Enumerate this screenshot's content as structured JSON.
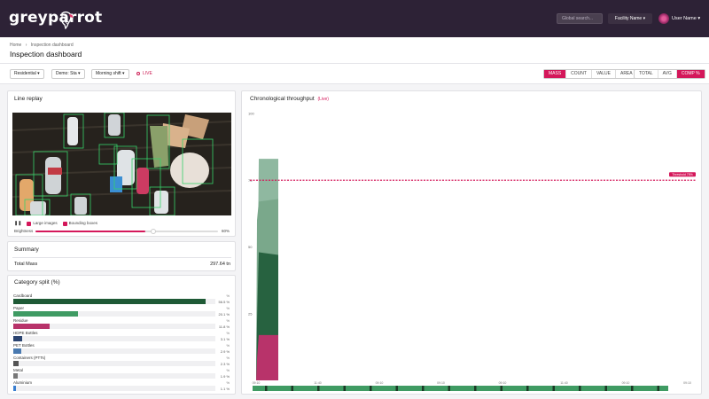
{
  "brand": {
    "logo_text": "greyparrot"
  },
  "topnav": {
    "search_placeholder": "Global search...",
    "facility": "Facility Name ▾",
    "user": "User Name ▾"
  },
  "header": {
    "breadcrumb": [
      "Home",
      "›",
      "Inspection dashboard"
    ],
    "title": "Inspection dashboard"
  },
  "filters": {
    "stream": "Residential ▾",
    "demo": "Demo: Sta ▾",
    "shift": "Morning shift ▾",
    "live": "LIVE",
    "measure": [
      {
        "label": "MASS",
        "active": true
      },
      {
        "label": "COUNT",
        "active": false
      },
      {
        "label": "VALUE",
        "active": false
      },
      {
        "label": "AREA",
        "active": false
      }
    ],
    "aggregate": [
      {
        "label": "TOTAL",
        "active": false
      },
      {
        "label": "AVG",
        "active": false
      },
      {
        "label": "COMP %",
        "active": true
      }
    ]
  },
  "line_replay": {
    "title": "Line replay",
    "pause_icon": "pause-icon",
    "legend": [
      "Large images",
      "Bounding boxes"
    ],
    "brightness_label": "Brightness",
    "brightness_value": "60%",
    "brightness_fraction": 0.6,
    "box_color": "#36d36a"
  },
  "summary": {
    "title": "Summary",
    "label": "Total Mass",
    "value": "297.64 tn"
  },
  "category_split": {
    "title": "Category split (%)",
    "unit": "%",
    "items": [
      {
        "name": "Cardboard",
        "value": "56.5 %",
        "fraction": 0.95,
        "color": "#1f5a36"
      },
      {
        "name": "Paper",
        "value": "20.1 %",
        "fraction": 0.32,
        "color": "#3f9b63"
      },
      {
        "name": "Residue",
        "value": "11.8 %",
        "fraction": 0.18,
        "color": "#b8336a"
      },
      {
        "name": "HDPE Bottles",
        "value": "3.1 %",
        "fraction": 0.045,
        "color": "#2b4470"
      },
      {
        "name": "PET Bottles",
        "value": "2.9 %",
        "fraction": 0.04,
        "color": "#4a7ab0"
      },
      {
        "name": "Containers (PTTs)",
        "value": "2.3 %",
        "fraction": 0.025,
        "color": "#555"
      },
      {
        "name": "Metal",
        "value": "1.9 %",
        "fraction": 0.02,
        "color": "#777"
      },
      {
        "name": "Aluminium",
        "value": "1.1 %",
        "fraction": 0.012,
        "color": "#3a7fd0"
      }
    ]
  },
  "throughput": {
    "title": "Chronological throughput",
    "live_tag": "(Live)",
    "threshold_label": "Threshold 75%",
    "threshold_color": "#d4175a"
  },
  "chart_data": {
    "type": "area",
    "title": "Chronological throughput",
    "y_ticks": [
      "100",
      "75",
      "50",
      "25"
    ],
    "ylim": [
      0,
      100
    ],
    "threshold": 75,
    "x_ticks": [
      "09:10",
      "11:40",
      "09:10",
      "09:10",
      "09:10",
      "11:40",
      "09:10",
      "09:10"
    ],
    "series": [
      {
        "color": "#8fb8a0",
        "values": [
          0,
          12,
          83,
          83
        ]
      },
      {
        "color": "#7aa88b",
        "values": [
          0,
          60,
          67,
          68
        ]
      },
      {
        "color": "#276240",
        "values": [
          0,
          22,
          48,
          47
        ]
      },
      {
        "color": "#b8336a",
        "values": [
          0,
          8,
          17,
          17
        ]
      }
    ],
    "grid": false
  }
}
